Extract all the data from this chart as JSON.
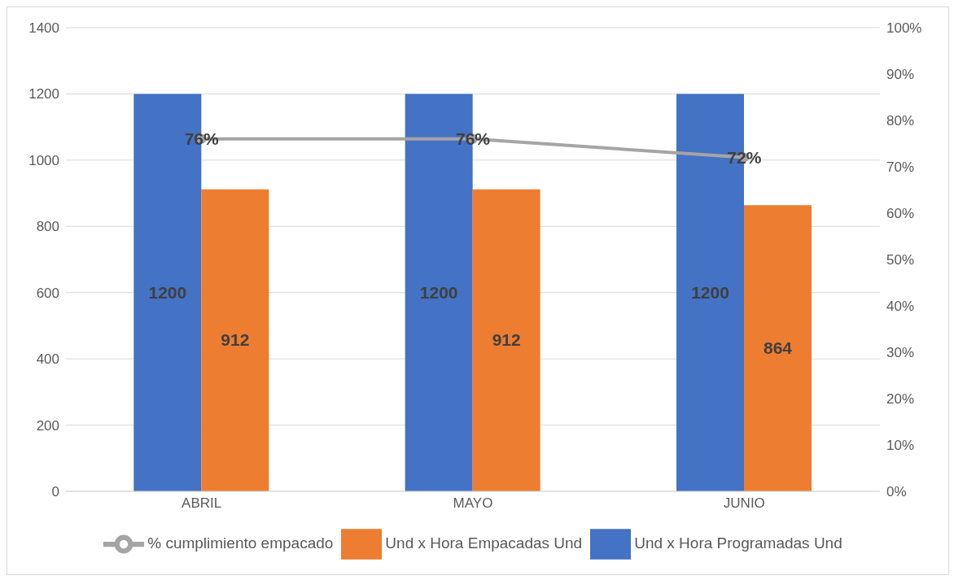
{
  "chart_data": {
    "type": "bar",
    "categories": [
      "ABRIL",
      "MAYO",
      "JUNIO"
    ],
    "series": [
      {
        "name": "Und x Hora Programadas Und",
        "color": "#4472c4",
        "values": [
          1200,
          1200,
          1200
        ],
        "value_labels": [
          "1200",
          "1200",
          "1200"
        ]
      },
      {
        "name": "Und x Hora Empacadas Und",
        "color": "#ed7d31",
        "values": [
          912,
          912,
          864
        ],
        "value_labels": [
          "912",
          "912",
          "864"
        ]
      },
      {
        "name": "% cumplimiento empacado",
        "type": "line",
        "axis": "y2",
        "color": "#a5a5a5",
        "values": [
          76,
          76,
          72
        ],
        "value_labels": [
          "76%",
          "76%",
          "72%"
        ],
        "marker": "circle"
      }
    ],
    "ylim": [
      0,
      1400
    ],
    "yticks": [
      0,
      200,
      400,
      600,
      800,
      1000,
      1200,
      1400
    ],
    "y2lim": [
      0,
      100
    ],
    "y2ticks": [
      {
        "value": 0,
        "label": "0%"
      },
      {
        "value": 10,
        "label": "10%"
      },
      {
        "value": 20,
        "label": "20%"
      },
      {
        "value": 30,
        "label": "30%"
      },
      {
        "value": 40,
        "label": "40%"
      },
      {
        "value": 50,
        "label": "50%"
      },
      {
        "value": 60,
        "label": "60%"
      },
      {
        "value": 70,
        "label": "70%"
      },
      {
        "value": 80,
        "label": "80%"
      },
      {
        "value": 90,
        "label": "90%"
      },
      {
        "value": 100,
        "label": "100%"
      }
    ],
    "grid": "y",
    "legend": "bottom"
  }
}
